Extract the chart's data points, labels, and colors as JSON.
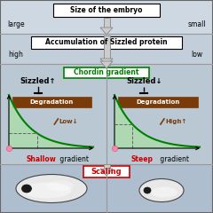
{
  "bg_color": "#c8d4e0",
  "panel_top_color": "#ccd8e4",
  "panel_mid_color": "#c0ccd8",
  "panel_graph_color": "#b8c8d8",
  "panel_bottom_color": "#b0c0d0",
  "title_embryo": "Size of the embryo",
  "label_large": "large",
  "label_small": "small",
  "title_sizzled": "Accumulation of Sizzled protein",
  "label_high": "high",
  "label_low": "low",
  "chordin_label": "Chordin gradient",
  "left_sizzled": "Sizzled↑",
  "right_sizzled": "Sizzled↓",
  "degradation_label": "Degradation",
  "left_gradient_label": "Shallow",
  "right_gradient_label": "Steep",
  "gradient_suffix": " gradient",
  "scaling_label": "Scaling",
  "low_label": "Low↓",
  "high_label": "High↑",
  "degradation_bg": "#7a3b0a",
  "chordin_color": "#008000",
  "red_color": "#cc0000",
  "curve_color": "#008000",
  "fill_color": "#aaddaa",
  "border_color": "#666666",
  "arrow_fill": "#cccccc",
  "arrow_edge": "#888888",
  "dashed_color": "#666666",
  "panel_divider": "#999999",
  "embryo_fill": "#dddddd",
  "embryo_edge": "#555555",
  "nucleus_color": "#111111"
}
